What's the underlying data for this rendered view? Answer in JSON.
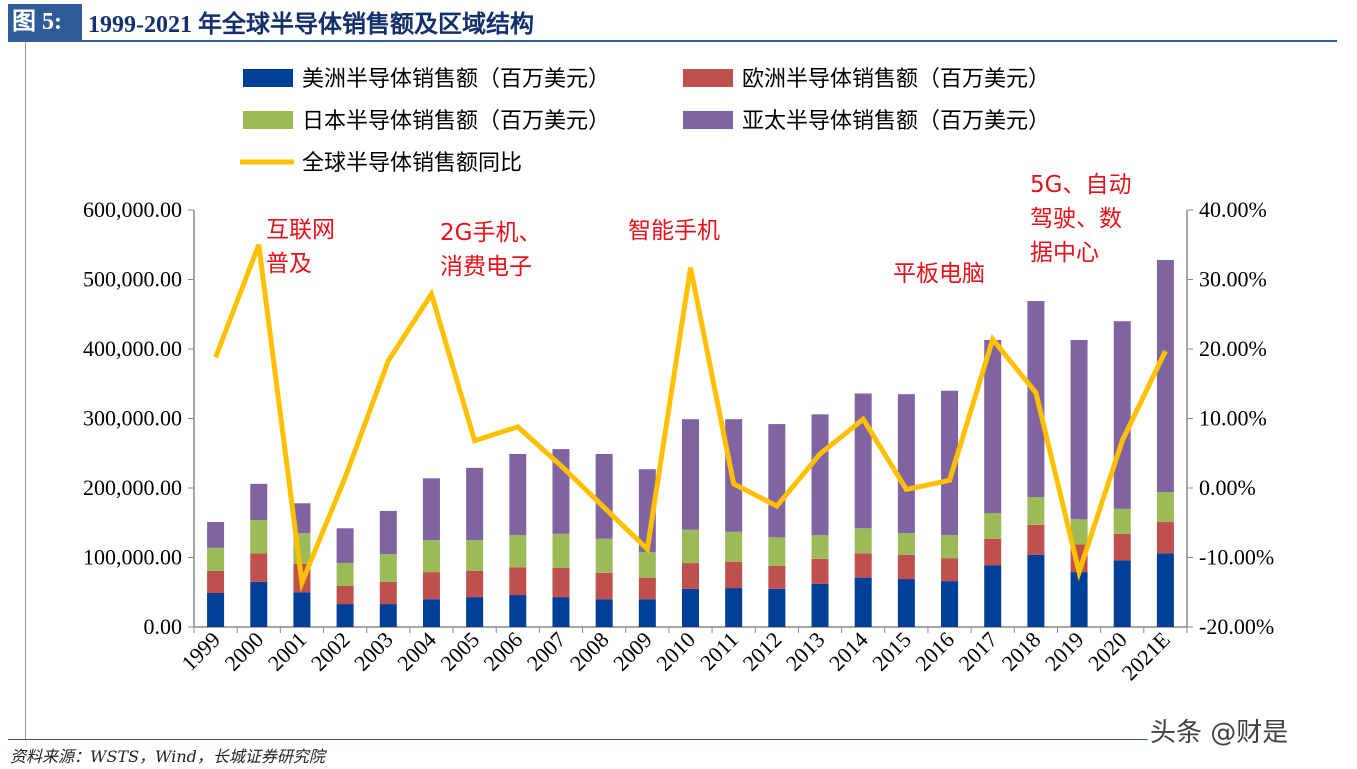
{
  "header": {
    "figure_label": "图 5:",
    "title": "1999-2021 年全球半导体销售额及区域结构"
  },
  "footer": {
    "source": "资料来源：WSTS，Wind，长城证券研究院",
    "watermark": "头条 @财是"
  },
  "chart_data": {
    "type": "bar",
    "stacked": true,
    "categories": [
      "1999",
      "2000",
      "2001",
      "2002",
      "2003",
      "2004",
      "2005",
      "2006",
      "2007",
      "2008",
      "2009",
      "2010",
      "2011",
      "2012",
      "2013",
      "2014",
      "2015",
      "2016",
      "2017",
      "2018",
      "2019",
      "2020",
      "2021E"
    ],
    "series": [
      {
        "name": "美洲半导体销售额（百万美元）",
        "color": "#003f98",
        "axis": "left",
        "values": [
          49000,
          65000,
          50000,
          33000,
          33000,
          40000,
          43000,
          46000,
          43000,
          40000,
          40000,
          55000,
          56000,
          55000,
          62000,
          71000,
          69000,
          66000,
          89000,
          104000,
          79000,
          96000,
          106000
        ]
      },
      {
        "name": "欧洲半导体销售额（百万美元）",
        "color": "#c0504d",
        "axis": "left",
        "values": [
          32000,
          41000,
          41000,
          26000,
          32000,
          39000,
          38000,
          40000,
          42000,
          38000,
          31000,
          37000,
          38000,
          33000,
          36000,
          35000,
          35000,
          33000,
          38000,
          43000,
          40000,
          38000,
          45000
        ]
      },
      {
        "name": "日本半导体销售额（百万美元）",
        "color": "#9bbb59",
        "axis": "left",
        "values": [
          33000,
          48000,
          44000,
          33000,
          40000,
          46000,
          44000,
          46000,
          49000,
          49000,
          37000,
          48000,
          43000,
          41000,
          34000,
          36000,
          31000,
          33000,
          37000,
          40000,
          36000,
          36000,
          43000
        ]
      },
      {
        "name": "亚太半导体销售额（百万美元）",
        "color": "#8064a2",
        "axis": "left",
        "values": [
          37000,
          52000,
          43000,
          50000,
          62000,
          89000,
          104000,
          117000,
          122000,
          122000,
          119000,
          159000,
          162000,
          163000,
          174000,
          194000,
          200000,
          208000,
          249000,
          282000,
          258000,
          270000,
          334000
        ]
      },
      {
        "name": "全球半导体销售额同比",
        "type": "line",
        "color": "#ffc000",
        "axis": "right",
        "values": [
          18.8,
          35.0,
          -13.6,
          1.5,
          18.3,
          27.9,
          6.8,
          8.8,
          3.2,
          -2.8,
          -8.8,
          31.7,
          0.6,
          -2.6,
          4.9,
          9.9,
          -0.2,
          1.1,
          21.4,
          13.7,
          -12.1,
          6.8,
          19.7
        ]
      }
    ],
    "y_left": {
      "range": [
        0,
        600000
      ],
      "ticks": [
        "0.00",
        "100,000.00",
        "200,000.00",
        "300,000.00",
        "400,000.00",
        "500,000.00",
        "600,000.00"
      ]
    },
    "y_right": {
      "range": [
        -20,
        40
      ],
      "ticks": [
        "-20.00%",
        "-10.00%",
        "0.00%",
        "10.00%",
        "20.00%",
        "30.00%",
        "40.00%"
      ]
    },
    "legend_position": "top",
    "grid": false,
    "annotations": [
      {
        "text": [
          "互联网",
          "普及"
        ],
        "near": "2000"
      },
      {
        "text": [
          "2G手机、",
          "消费电子"
        ],
        "near": "2004"
      },
      {
        "text": [
          "智能手机"
        ],
        "near": "2010"
      },
      {
        "text": [
          "平板电脑"
        ],
        "near": "2016"
      },
      {
        "text": [
          "5G、自动",
          "驾驶、数",
          "据中心"
        ],
        "near": "2018"
      }
    ]
  }
}
